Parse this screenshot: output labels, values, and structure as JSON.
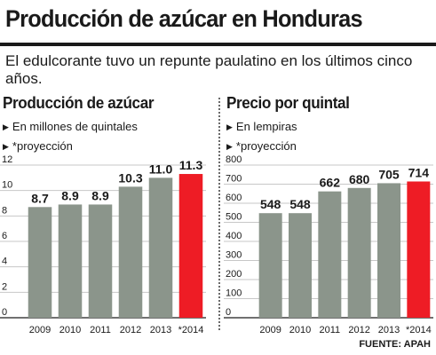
{
  "headline": "Producción de azúcar en Honduras",
  "subtitle": "El edulcorante tuvo un repunte paulatino en los últimos cinco años.",
  "source": "FUENTE: APAH",
  "colors": {
    "bar": "#8b958b",
    "highlight": "#ee1c25",
    "text": "#1a1a1a",
    "grid": "#c7c7c7"
  },
  "chart_data": [
    {
      "type": "bar",
      "title": "Producción de azúcar",
      "notes": [
        "En millones de quintales",
        "*proyección"
      ],
      "categories": [
        "2009",
        "2010",
        "2011",
        "2012",
        "2013",
        "*2014"
      ],
      "values": [
        8.7,
        8.9,
        8.9,
        10.3,
        11.0,
        11.3
      ],
      "value_labels": [
        "8.7",
        "8.9",
        "8.9",
        "10.3",
        "11.0",
        "11.3"
      ],
      "highlight_index": 5,
      "ylim": [
        0,
        12
      ],
      "yticks": [
        0,
        2,
        4,
        6,
        8,
        10,
        12
      ],
      "grid": true
    },
    {
      "type": "bar",
      "title": "Precio por quintal",
      "notes": [
        "En lempiras",
        "*proyección"
      ],
      "categories": [
        "2009",
        "2010",
        "2011",
        "2012",
        "2013",
        "*2014"
      ],
      "values": [
        548,
        548,
        662,
        680,
        705,
        714
      ],
      "value_labels": [
        "548",
        "548",
        "662",
        "680",
        "705",
        "714"
      ],
      "highlight_index": 5,
      "ylim": [
        0,
        800
      ],
      "yticks": [
        0,
        100,
        200,
        300,
        400,
        500,
        600,
        700,
        800
      ],
      "grid": true
    }
  ]
}
